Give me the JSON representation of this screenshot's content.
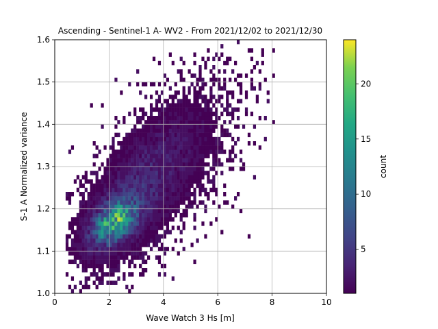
{
  "chart_data": {
    "type": "heatmap",
    "title": "Ascending - Sentinel-1 A- WV2 - From 2021/12/02 to 2021/12/30",
    "xlabel": "Wave Watch 3 Hs [m]",
    "ylabel": "S-1 A Normalized variance",
    "xlim": [
      0,
      10
    ],
    "ylim": [
      1.0,
      1.6
    ],
    "x_ticks": [
      "0",
      "2",
      "4",
      "6",
      "8",
      "10"
    ],
    "y_ticks": [
      "1.0",
      "1.1",
      "1.2",
      "1.3",
      "1.4",
      "1.5",
      "1.6"
    ],
    "grid": true,
    "colormap": "viridis",
    "colorbar": {
      "label": "count",
      "range": [
        1,
        24
      ],
      "ticks": [
        "5",
        "10",
        "15",
        "20"
      ]
    },
    "bin_width": [
      0.1,
      0.01
    ],
    "density": {
      "core": {
        "x": 2.2,
        "y": 1.17,
        "peak_count": 24
      },
      "cloud": {
        "x_range": [
          0.4,
          8.2
        ],
        "y_range": [
          1.0,
          1.6
        ],
        "relation": "variance increases with Hs"
      }
    }
  }
}
